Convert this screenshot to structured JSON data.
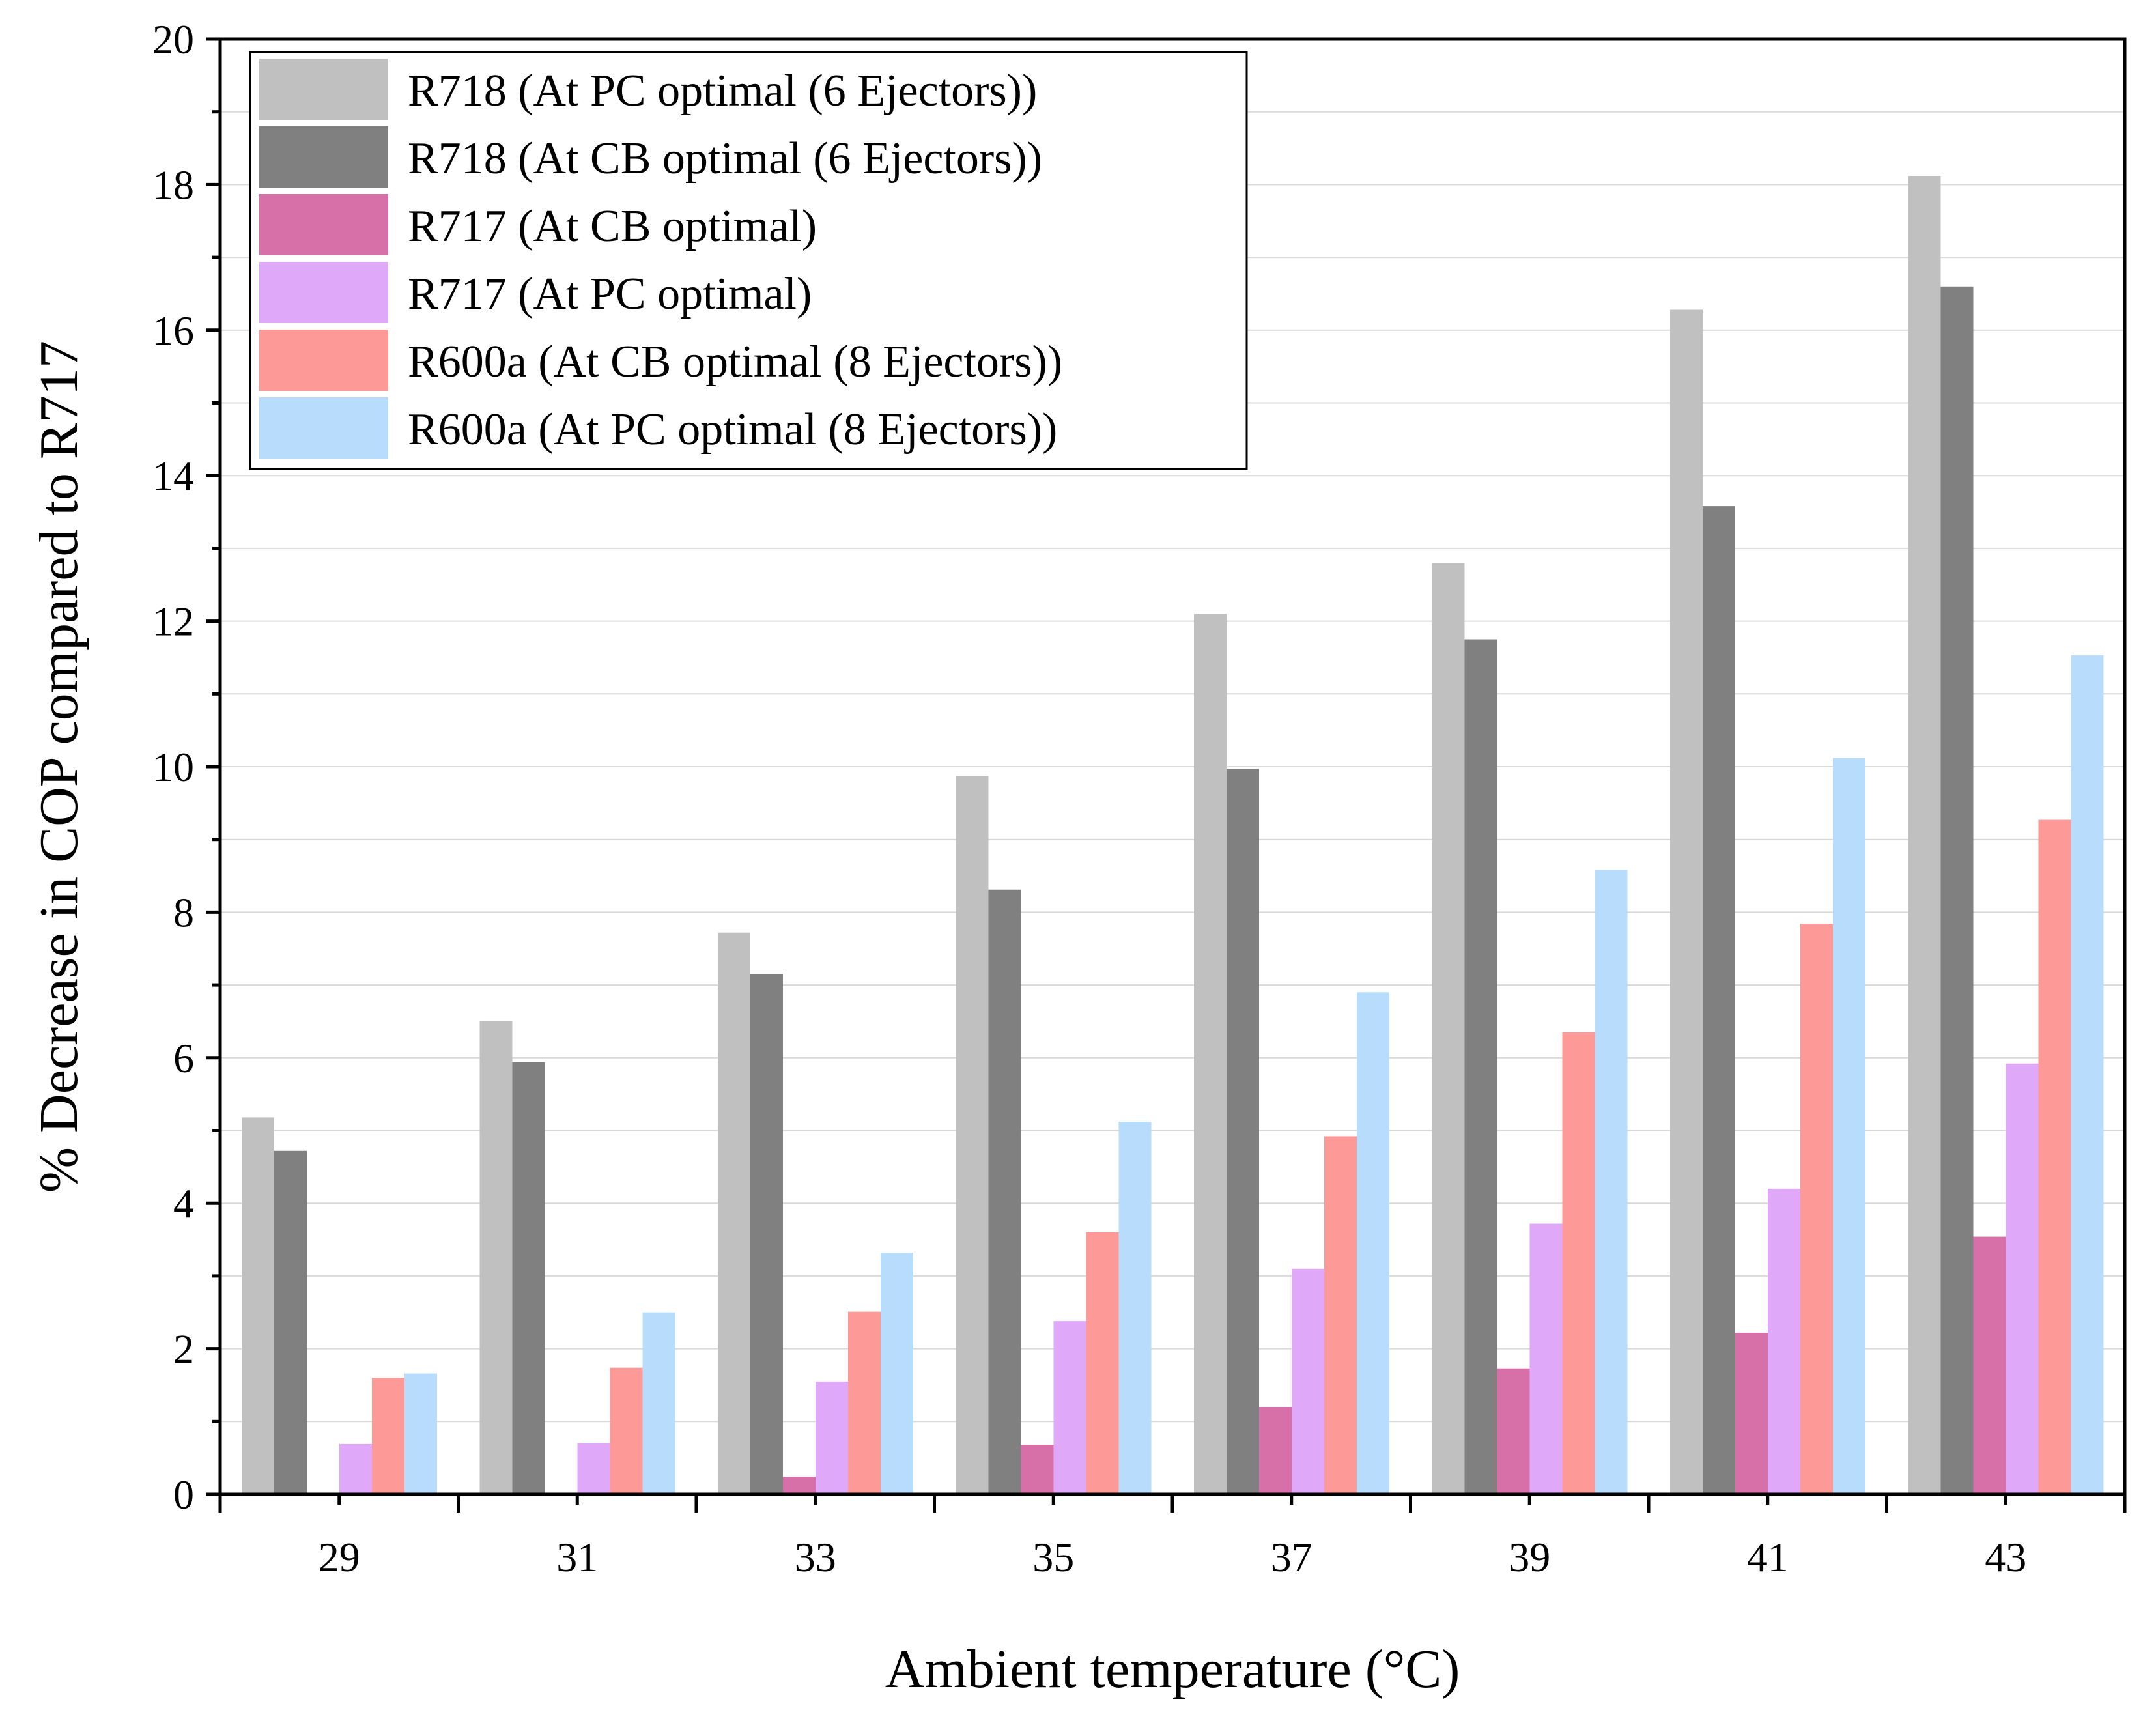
{
  "chart_data": {
    "type": "bar",
    "title": "",
    "xlabel": "Ambient temperature (°C)",
    "ylabel": "% Decrease in COP compared to R717",
    "ylim": [
      0,
      20
    ],
    "yticks": [
      "0",
      "2",
      "4",
      "6",
      "8",
      "10",
      "12",
      "14",
      "16",
      "18",
      "20"
    ],
    "grid": true,
    "legend_position": "top-left",
    "categories": [
      "29",
      "31",
      "33",
      "35",
      "37",
      "39",
      "41",
      "43"
    ],
    "series": [
      {
        "name": "R718 (At PC optimal (6 Ejectors))",
        "color": "#c0c0c0",
        "values": [
          5.18,
          6.5,
          7.72,
          9.87,
          12.1,
          12.8,
          16.28,
          18.12
        ]
      },
      {
        "name": "R718 (At CB optimal (6 Ejectors))",
        "color": "#808080",
        "values": [
          4.72,
          5.94,
          7.15,
          8.31,
          9.97,
          11.75,
          13.58,
          16.6
        ]
      },
      {
        "name": "R717 (At CB optimal)",
        "color": "#d76fa8",
        "values": [
          0,
          0,
          0.24,
          0.68,
          1.2,
          1.73,
          2.22,
          3.54
        ]
      },
      {
        "name": "R717 (At PC optimal)",
        "color": "#e0a8f8",
        "values": [
          0.69,
          0.7,
          1.55,
          2.38,
          3.1,
          3.72,
          4.2,
          5.92
        ]
      },
      {
        "name": "R600a (At CB optimal (8 Ejectors))",
        "color": "#fd9a97",
        "values": [
          1.6,
          1.74,
          2.51,
          3.6,
          4.92,
          6.35,
          7.84,
          9.27
        ]
      },
      {
        "name": "R600a (At PC optimal (8 Ejectors))",
        "color": "#b8dcfc",
        "values": [
          1.66,
          2.5,
          3.32,
          5.12,
          6.9,
          8.58,
          10.12,
          11.53
        ]
      }
    ]
  }
}
